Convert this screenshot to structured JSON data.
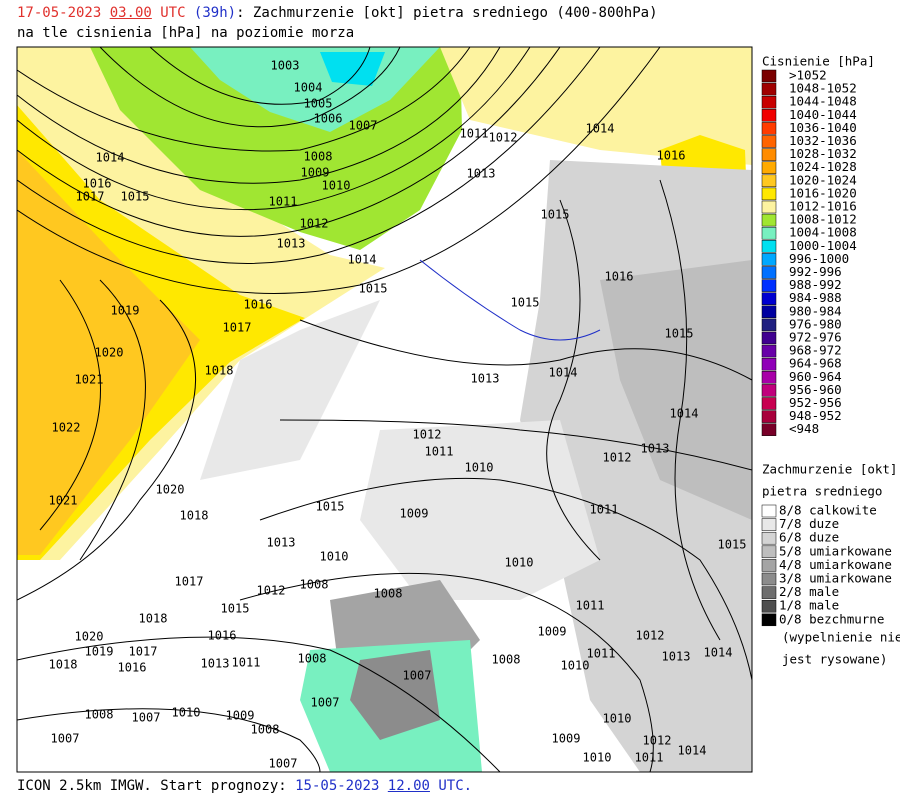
{
  "header": {
    "date": "17-05-2023",
    "hour": "03.00",
    "utc": "UTC",
    "lead": "(39h)",
    "rest": ": Zachmurzenie [okt] pietra sredniego (400-800hPa)",
    "line2": "na tle cisnienia [hPa] na poziomie morza"
  },
  "legend_pressure": {
    "title": "Cisnienie [hPa]",
    "items": [
      {
        "label": ">1052",
        "color": "#7a0000"
      },
      {
        "label": "1048-1052",
        "color": "#a00000"
      },
      {
        "label": "1044-1048",
        "color": "#c80000"
      },
      {
        "label": "1040-1044",
        "color": "#f00000"
      },
      {
        "label": "1036-1040",
        "color": "#ff3c00"
      },
      {
        "label": "1032-1036",
        "color": "#ff6400"
      },
      {
        "label": "1028-1032",
        "color": "#ff8c00"
      },
      {
        "label": "1024-1028",
        "color": "#ffaa00"
      },
      {
        "label": "1020-1024",
        "color": "#ffc820"
      },
      {
        "label": "1016-1020",
        "color": "#ffe800"
      },
      {
        "label": "1012-1016",
        "color": "#fdf3a0"
      },
      {
        "label": "1008-1012",
        "color": "#a0e632"
      },
      {
        "label": "1004-1008",
        "color": "#78f0c0"
      },
      {
        "label": "1000-1004",
        "color": "#00e0f0"
      },
      {
        "label": "996-1000",
        "color": "#00a8ff"
      },
      {
        "label": "992-996",
        "color": "#0070ff"
      },
      {
        "label": "988-992",
        "color": "#0030ff"
      },
      {
        "label": "984-988",
        "color": "#0000d0"
      },
      {
        "label": "980-984",
        "color": "#0000a0"
      },
      {
        "label": "976-980",
        "color": "#202080"
      },
      {
        "label": "972-976",
        "color": "#400090"
      },
      {
        "label": "968-972",
        "color": "#6800a8"
      },
      {
        "label": "964-968",
        "color": "#9000b8"
      },
      {
        "label": "960-964",
        "color": "#a800a8"
      },
      {
        "label": "956-960",
        "color": "#c0007c"
      },
      {
        "label": "952-956",
        "color": "#c80050"
      },
      {
        "label": "948-952",
        "color": "#a8003c"
      },
      {
        "label": "<948",
        "color": "#780028"
      }
    ]
  },
  "legend_clouds": {
    "title": [
      "Zachmurzenie [okt]",
      "pietra sredniego"
    ],
    "items": [
      {
        "label": "8/8 calkowite",
        "color": "#ffffff"
      },
      {
        "label": "7/8 duze",
        "color": "#e8e8e8"
      },
      {
        "label": "6/8 duze",
        "color": "#d4d4d4"
      },
      {
        "label": "5/8 umiarkowane",
        "color": "#bebebe"
      },
      {
        "label": "4/8 umiarkowane",
        "color": "#a4a4a4"
      },
      {
        "label": "3/8 umiarkowane",
        "color": "#8c8c8c"
      },
      {
        "label": "2/8 male",
        "color": "#6e6e6e"
      },
      {
        "label": "1/8 male",
        "color": "#4e4e4e"
      },
      {
        "label": "0/8 bezchmurne",
        "color": "#000000"
      }
    ],
    "note": [
      "(wypelnienie nie",
      "jest rysowane)"
    ]
  },
  "isobar_labels": [
    "1003",
    "1004",
    "1005",
    "1006",
    "1007",
    "1008",
    "1009",
    "1010",
    "1011",
    "1012",
    "1013",
    "1014",
    "1015",
    "1016",
    "1017",
    "1018",
    "1019",
    "1020",
    "1021",
    "1022",
    "1021",
    "1020",
    "1018",
    "1017",
    "1018",
    "1014",
    "1016",
    "1017",
    "1015",
    "1011",
    "1012",
    "1013",
    "1014",
    "1016",
    "1015",
    "1016",
    "1015",
    "1015",
    "1014",
    "1013",
    "1014",
    "1012",
    "1011",
    "1010",
    "1013",
    "1012",
    "1011",
    "1009",
    "1015",
    "1013",
    "1010",
    "1008",
    "1012",
    "1015",
    "1016",
    "1017",
    "1019",
    "1020",
    "1018",
    "1016",
    "1013",
    "1011",
    "1008",
    "1007",
    "1007",
    "1008",
    "1009",
    "1010",
    "1008",
    "1011",
    "1012",
    "1011",
    "1013",
    "1014",
    "1015",
    "1010",
    "1010",
    "1009",
    "1010",
    "1011",
    "1012",
    "1014",
    "1007",
    "1007",
    "1008",
    "1009",
    "1010",
    "1007",
    "1008"
  ],
  "footer": {
    "model": "ICON 2.5km IMGW. Start prognozy:",
    "date": "15-05-2023",
    "hour": "12.00",
    "utc": "UTC."
  }
}
